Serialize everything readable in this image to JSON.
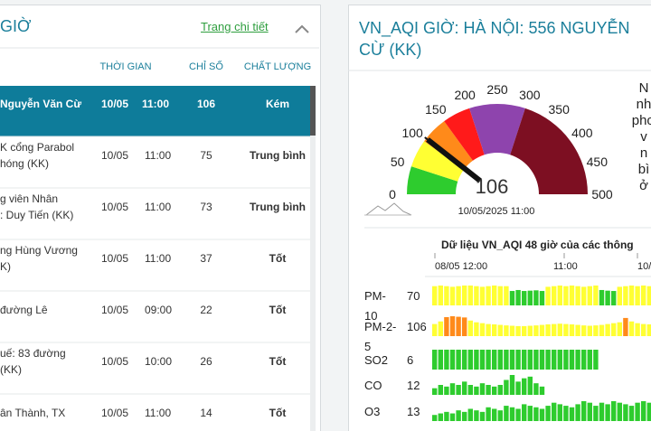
{
  "left": {
    "title": "GIỜ",
    "link": "Trang chi tiết",
    "columns": [
      "THỜI GIAN",
      "CHỈ SỐ",
      "CHẤT LƯỢNG"
    ],
    "rows": [
      {
        "station": [
          "Nguyễn Văn Cừ"
        ],
        "date": "10/05",
        "time": "11:00",
        "index": 106,
        "quality": "Kém"
      },
      {
        "station": [
          "K cổng Parabol",
          "hóng (KK)"
        ],
        "date": "10/05",
        "time": "11:00",
        "index": 75,
        "quality": "Trung bình"
      },
      {
        "station": [
          "g viên Nhân",
          ": Duy Tiến (KK)"
        ],
        "date": "10/05",
        "time": "11:00",
        "index": 73,
        "quality": "Trung bình"
      },
      {
        "station": [
          "ng Hùng Vương",
          "K)"
        ],
        "date": "10/05",
        "time": "11:00",
        "index": 37,
        "quality": "Tốt"
      },
      {
        "station": [
          "đường Lê"
        ],
        "date": "10/05",
        "time": "09:00",
        "index": 22,
        "quality": "Tốt"
      },
      {
        "station": [
          "uế: 83 đường",
          "(KK)"
        ],
        "date": "10/05",
        "time": "10:00",
        "index": 26,
        "quality": "Tốt"
      },
      {
        "station": [
          "ân Thành, TX"
        ],
        "date": "10/05",
        "time": "11:00",
        "index": 14,
        "quality": "Tốt"
      }
    ]
  },
  "right": {
    "title": [
      "VN_AQI GIỜ: HÀ NỘI: 556 NGUYỄN",
      "CỪ (KK)"
    ],
    "gauge": {
      "ticks": [
        0,
        50,
        100,
        150,
        200,
        250,
        300,
        350,
        400,
        450,
        500
      ],
      "value": 106,
      "timestamp": "10/05/2025 11:00",
      "bands": [
        {
          "from": 0,
          "to": 50,
          "color": "#2ecc2e"
        },
        {
          "from": 50,
          "to": 100,
          "color": "#ffff33"
        },
        {
          "from": 100,
          "to": 150,
          "color": "#ff8a1a"
        },
        {
          "from": 150,
          "to": 200,
          "color": "#ff1a1a"
        },
        {
          "from": 200,
          "to": 300,
          "color": "#8e44ad"
        },
        {
          "from": 300,
          "to": 500,
          "color": "#7d0f22"
        }
      ]
    },
    "side_text": [
      "N",
      "nh",
      "phơ",
      "v",
      "n",
      "bì",
      "ở"
    ],
    "chart": {
      "title": "Dữ liệu VN_AQI 48 giờ của các thông",
      "x_labels": [
        "08/05 12:00",
        "11:00",
        "10/"
      ],
      "series": [
        {
          "name": "PM-10",
          "value": 70,
          "bars": [
            60,
            62,
            60,
            58,
            60,
            62,
            62,
            60,
            58,
            60,
            62,
            60,
            60,
            45,
            48,
            45,
            46,
            47,
            45,
            58,
            60,
            62,
            60,
            62,
            60,
            58,
            60,
            62,
            48,
            46,
            45,
            58,
            60,
            62,
            60,
            62,
            60
          ]
        },
        {
          "name": "PM-2-5",
          "value": 106,
          "bars": [
            70,
            85,
            110,
            115,
            112,
            108,
            90,
            80,
            75,
            70,
            68,
            65,
            62,
            60,
            58,
            58,
            60,
            62,
            65,
            68,
            70,
            72,
            70,
            68,
            65,
            62,
            60,
            62,
            65,
            70,
            75,
            80,
            105,
            85,
            75,
            70,
            68
          ]
        },
        {
          "name": "SO2",
          "value": 6,
          "bars": [
            6,
            6,
            6,
            6,
            6,
            6,
            6,
            6,
            6,
            6,
            6,
            6,
            6,
            6,
            6,
            6,
            6,
            6,
            6,
            6,
            6,
            6,
            6,
            6,
            6,
            6,
            6,
            6
          ]
        },
        {
          "name": "CO",
          "value": 12,
          "bars": [
            4,
            6,
            5,
            7,
            6,
            8,
            6,
            5,
            7,
            6,
            5,
            6,
            9,
            12,
            8,
            10,
            11,
            7,
            5
          ]
        },
        {
          "name": "O3",
          "value": 13,
          "bars": [
            4,
            5,
            6,
            5,
            7,
            6,
            8,
            7,
            6,
            9,
            8,
            7,
            10,
            9,
            8,
            11,
            10,
            9,
            8,
            10,
            12,
            11,
            10,
            9,
            11,
            13,
            12,
            10,
            12,
            11,
            13,
            12,
            11,
            10,
            12,
            13,
            12
          ]
        }
      ]
    }
  }
}
